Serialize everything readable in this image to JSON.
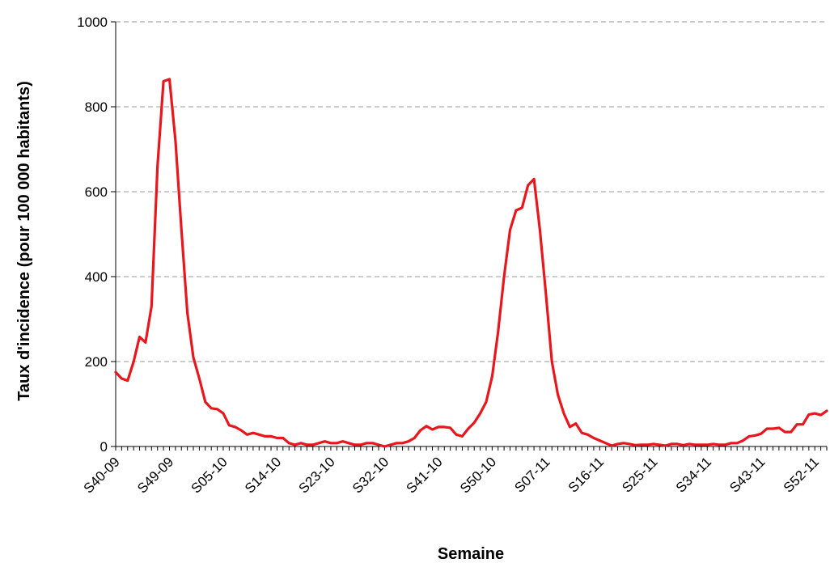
{
  "chart_data": {
    "type": "line",
    "title": "",
    "xlabel": "Semaine",
    "ylabel": "Taux d'incidence (pour 100 000 habitants)",
    "ylim": [
      0,
      1000
    ],
    "yticks": [
      0,
      200,
      400,
      600,
      800,
      1000
    ],
    "grid": true,
    "line_color": "#e8161d",
    "x_tick_labels": [
      "S40-09",
      "S49-09",
      "S05-10",
      "S14-10",
      "S23-10",
      "S32-10",
      "S41-10",
      "S50-10",
      "S07-11",
      "S16-11",
      "S25-11",
      "S34-11",
      "S43-11",
      "S52-11"
    ],
    "series": [
      {
        "values": [
          175,
          160,
          155,
          200,
          258,
          245,
          330,
          660,
          860,
          865,
          720,
          510,
          315,
          210,
          160,
          105,
          90,
          88,
          78,
          50,
          46,
          38,
          28,
          32,
          28,
          24,
          24,
          20,
          20,
          8,
          4,
          8,
          4,
          4,
          8,
          12,
          8,
          8,
          12,
          8,
          4,
          4,
          8,
          8,
          4,
          0,
          4,
          8,
          8,
          12,
          20,
          38,
          48,
          40,
          46,
          46,
          44,
          28,
          24,
          42,
          56,
          78,
          105,
          165,
          270,
          400,
          510,
          556,
          562,
          615,
          630,
          510,
          360,
          200,
          122,
          78,
          46,
          54,
          32,
          28,
          20,
          14,
          8,
          2,
          6,
          8,
          6,
          3,
          4,
          4,
          6,
          4,
          2,
          6,
          6,
          3,
          6,
          4,
          4,
          4,
          6,
          4,
          4,
          8,
          8,
          14,
          24,
          26,
          30,
          42,
          42,
          44,
          34,
          34,
          52,
          52,
          75,
          78,
          74,
          84
        ]
      }
    ]
  }
}
